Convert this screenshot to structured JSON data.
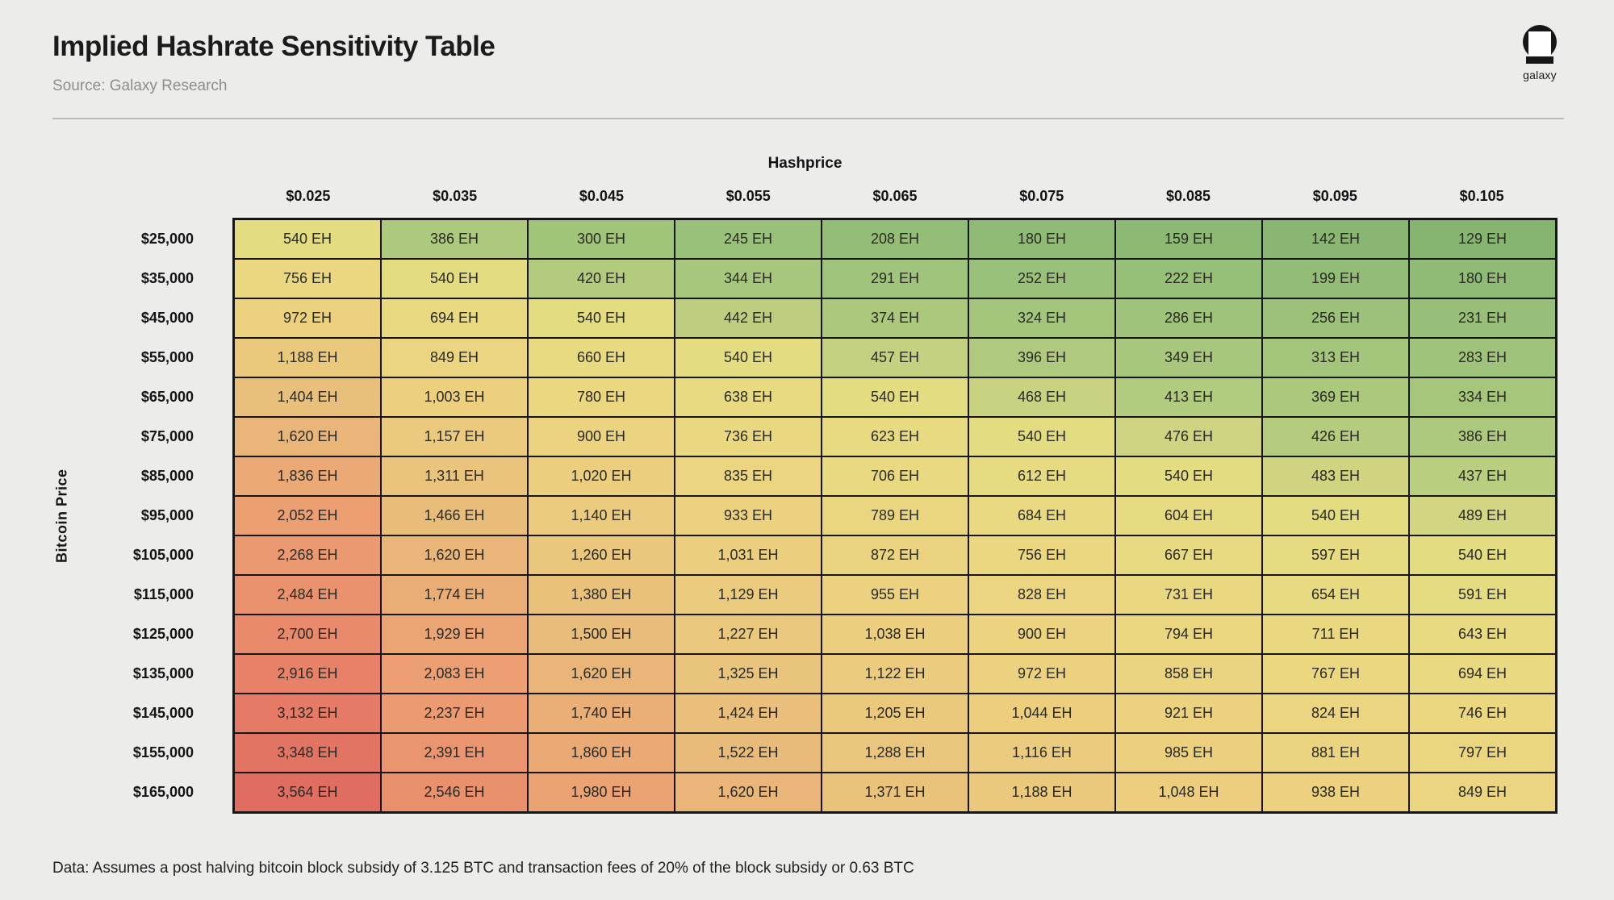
{
  "header": {
    "title": "Implied Hashrate Sensitivity Table",
    "source": "Source: Galaxy Research",
    "logo_text": "galaxy"
  },
  "chart_data": {
    "type": "heatmap",
    "title": "Implied Hashrate Sensitivity Table",
    "x_axis_label": "Hashprice",
    "y_axis_label": "Bitcoin Price",
    "unit": "EH",
    "columns": [
      "$0.025",
      "$0.035",
      "$0.045",
      "$0.055",
      "$0.065",
      "$0.075",
      "$0.085",
      "$0.095",
      "$0.105"
    ],
    "rows": [
      "$25,000",
      "$35,000",
      "$45,000",
      "$55,000",
      "$65,000",
      "$75,000",
      "$85,000",
      "$95,000",
      "$105,000",
      "$115,000",
      "$125,000",
      "$135,000",
      "$145,000",
      "$155,000",
      "$165,000"
    ],
    "values_eh": [
      [
        540,
        386,
        300,
        245,
        208,
        180,
        159,
        142,
        129
      ],
      [
        756,
        540,
        420,
        344,
        291,
        252,
        222,
        199,
        180
      ],
      [
        972,
        694,
        540,
        442,
        374,
        324,
        286,
        256,
        231
      ],
      [
        1188,
        849,
        660,
        540,
        457,
        396,
        349,
        313,
        283
      ],
      [
        1404,
        1003,
        780,
        638,
        540,
        468,
        413,
        369,
        334
      ],
      [
        1620,
        1157,
        900,
        736,
        623,
        540,
        476,
        426,
        386
      ],
      [
        1836,
        1311,
        1020,
        835,
        706,
        612,
        540,
        483,
        437
      ],
      [
        2052,
        1466,
        1140,
        933,
        789,
        684,
        604,
        540,
        489
      ],
      [
        2268,
        1620,
        1260,
        1031,
        872,
        756,
        667,
        597,
        540
      ],
      [
        2484,
        1774,
        1380,
        1129,
        955,
        828,
        731,
        654,
        591
      ],
      [
        2700,
        1929,
        1500,
        1227,
        1038,
        900,
        794,
        711,
        643
      ],
      [
        2916,
        2083,
        1620,
        1325,
        1122,
        972,
        858,
        767,
        694
      ],
      [
        3132,
        2237,
        1740,
        1424,
        1205,
        1044,
        921,
        824,
        746
      ],
      [
        3348,
        2391,
        1860,
        1522,
        1288,
        1116,
        985,
        881,
        797
      ],
      [
        3564,
        2546,
        1980,
        1620,
        1371,
        1188,
        1048,
        938,
        849
      ]
    ],
    "value_range": [
      129,
      3564
    ],
    "legend_position": "none",
    "color_scale_anchors": [
      {
        "value": 129,
        "color": "#86b572"
      },
      {
        "value": 180,
        "color": "#90bb76"
      },
      {
        "value": 250,
        "color": "#9ac17a"
      },
      {
        "value": 330,
        "color": "#a5c67c"
      },
      {
        "value": 420,
        "color": "#b2cb7f"
      },
      {
        "value": 480,
        "color": "#cfd481"
      },
      {
        "value": 540,
        "color": "#e3dc81"
      },
      {
        "value": 650,
        "color": "#e8da80"
      },
      {
        "value": 800,
        "color": "#ebd680"
      },
      {
        "value": 1000,
        "color": "#ecd07e"
      },
      {
        "value": 1250,
        "color": "#eac77d"
      },
      {
        "value": 1500,
        "color": "#e8bc7a"
      },
      {
        "value": 1750,
        "color": "#eaae76"
      },
      {
        "value": 2000,
        "color": "#eca273"
      },
      {
        "value": 2300,
        "color": "#eb9870"
      },
      {
        "value": 2600,
        "color": "#e98e6c"
      },
      {
        "value": 2900,
        "color": "#e78368"
      },
      {
        "value": 3200,
        "color": "#e47965"
      },
      {
        "value": 3564,
        "color": "#e06d62"
      }
    ],
    "grid_line_color": "#161616",
    "background_color": "#ececeb"
  },
  "footer": {
    "note": "Data: Assumes a post halving bitcoin block subsidy of 3.125 BTC and transaction fees of 20% of the block subsidy or 0.63 BTC"
  }
}
